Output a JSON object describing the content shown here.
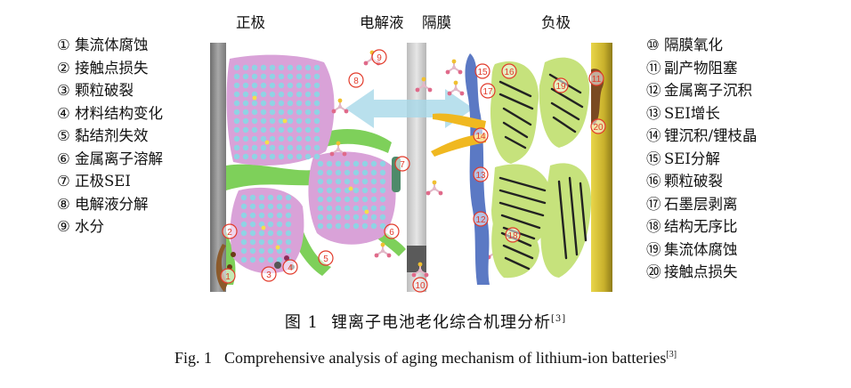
{
  "regions": {
    "cathode": "正极",
    "electrolyte": "电解液",
    "separator": "隔膜",
    "anode": "负极"
  },
  "legend_left": [
    {
      "num": "①",
      "text": "集流体腐蚀"
    },
    {
      "num": "②",
      "text": "接触点损失"
    },
    {
      "num": "③",
      "text": "颗粒破裂"
    },
    {
      "num": "④",
      "text": "材料结构变化"
    },
    {
      "num": "⑤",
      "text": "黏结剂失效"
    },
    {
      "num": "⑥",
      "text": "金属离子溶解"
    },
    {
      "num": "⑦",
      "text": "正极SEI"
    },
    {
      "num": "⑧",
      "text": "电解液分解"
    },
    {
      "num": "⑨",
      "text": "水分"
    }
  ],
  "legend_right": [
    {
      "num": "⑩",
      "text": "隔膜氧化"
    },
    {
      "num": "⑪",
      "text": "副产物阻塞"
    },
    {
      "num": "⑫",
      "text": "金属离子沉积"
    },
    {
      "num": "⑬",
      "text": "SEI增长"
    },
    {
      "num": "⑭",
      "text": "锂沉积/锂枝晶"
    },
    {
      "num": "⑮",
      "text": "SEI分解"
    },
    {
      "num": "⑯",
      "text": "颗粒破裂"
    },
    {
      "num": "⑰",
      "text": "石墨层剥离"
    },
    {
      "num": "⑱",
      "text": "结构无序比"
    },
    {
      "num": "⑲",
      "text": "集流体腐蚀"
    },
    {
      "num": "⑳",
      "text": "接触点损失"
    }
  ],
  "diagram_markers": [
    "①",
    "②",
    "③",
    "④",
    "⑤",
    "⑥",
    "⑦",
    "⑧",
    "⑨",
    "⑩",
    "⑪",
    "⑫",
    "⑬",
    "⑭",
    "⑮",
    "⑯",
    "⑰",
    "⑱",
    "⑲",
    "⑳"
  ],
  "caption": {
    "cn_label": "图 1",
    "cn_text": "锂离子电池老化综合机理分析",
    "cn_ref": "[3]",
    "en_label": "Fig. 1",
    "en_text": "Comprehensive analysis of aging mechanism of lithium-ion batteries",
    "en_ref": "[3]"
  },
  "colors": {
    "cathode_particle": "#d9a2d8",
    "binder": "#7ed05a",
    "anode_particle": "#c6e27c",
    "current_collector_cathode": "#8c8c8c",
    "current_collector_anode": "#c9b430",
    "sei": "#5b79c4",
    "dendrite": "#f0b820",
    "marker": "#e23a2a"
  }
}
